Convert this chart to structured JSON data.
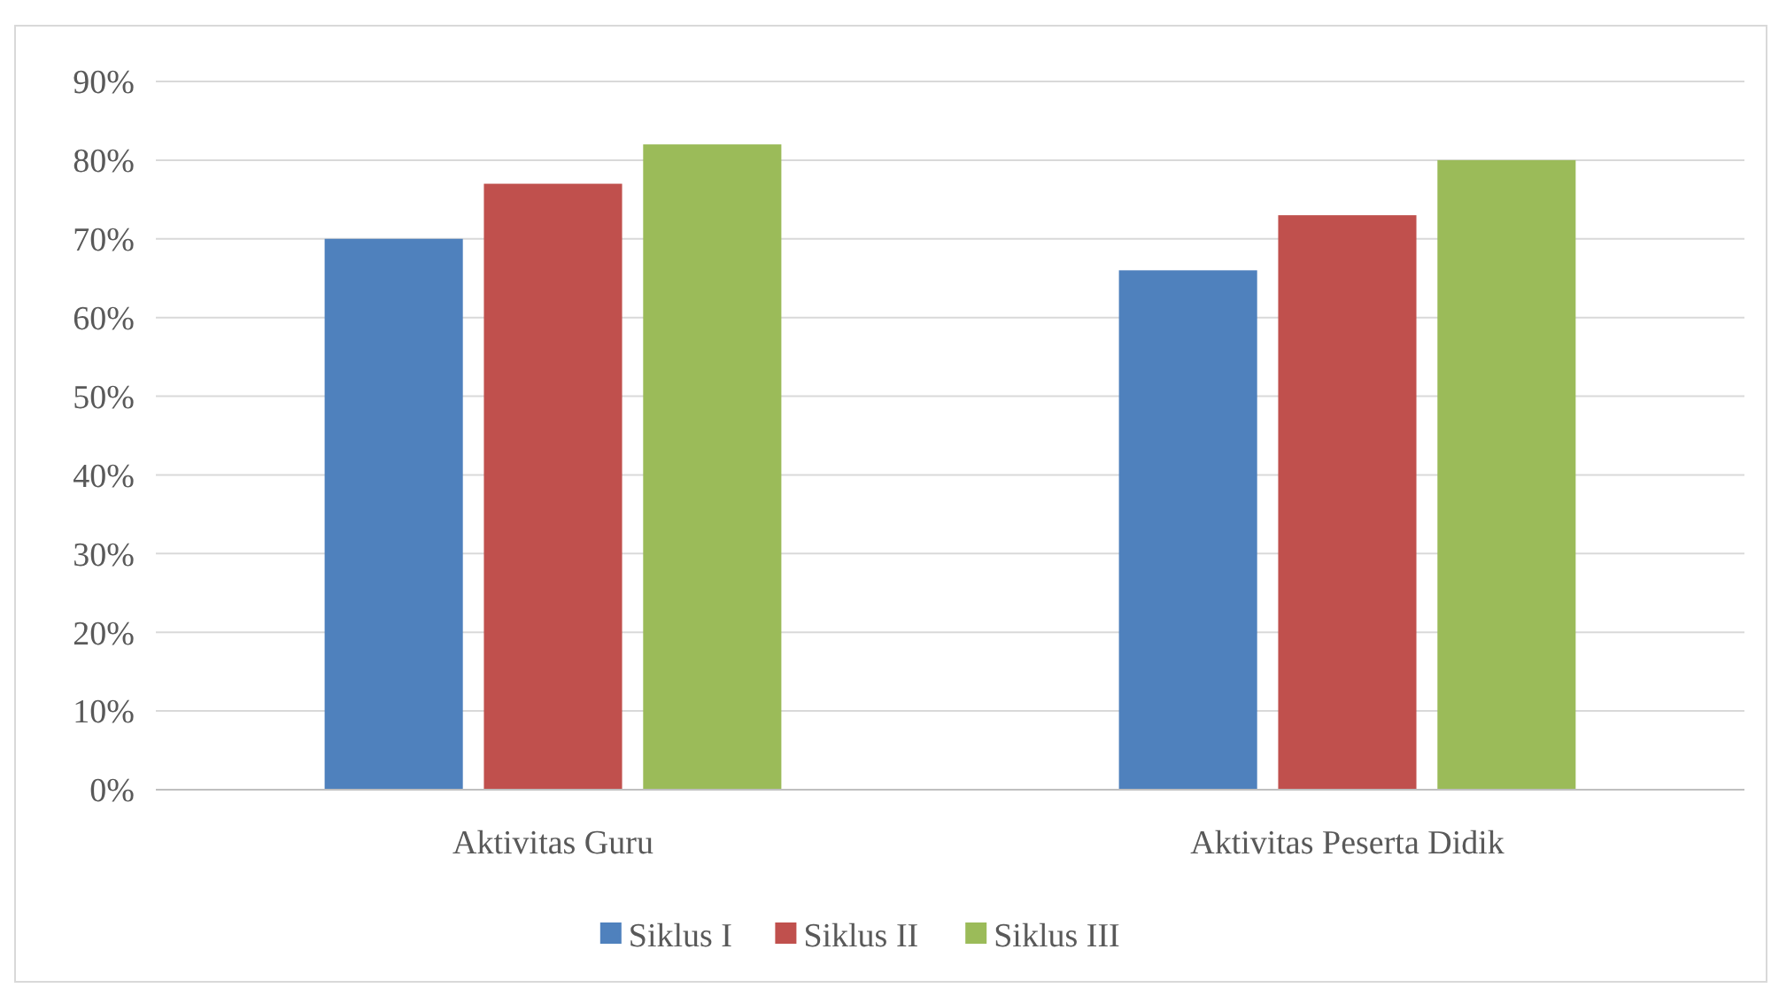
{
  "chart_data": {
    "type": "bar",
    "categories": [
      "Aktivitas Guru",
      "Aktivitas Peserta Didik"
    ],
    "series": [
      {
        "name": "Siklus I",
        "color": "#4f81bd",
        "values": [
          70,
          66
        ]
      },
      {
        "name": "Siklus II",
        "color": "#c0504d",
        "values": [
          77,
          73
        ]
      },
      {
        "name": "Siklus III",
        "color": "#9bbb59",
        "values": [
          82,
          80
        ]
      }
    ],
    "ylim": [
      0,
      90
    ],
    "yticks": [
      {
        "value": 0,
        "label": "0%"
      },
      {
        "value": 10,
        "label": "10%"
      },
      {
        "value": 20,
        "label": "20%"
      },
      {
        "value": 30,
        "label": "30%"
      },
      {
        "value": 40,
        "label": "40%"
      },
      {
        "value": 50,
        "label": "50%"
      },
      {
        "value": 60,
        "label": "60%"
      },
      {
        "value": 70,
        "label": "70%"
      },
      {
        "value": 80,
        "label": "80%"
      },
      {
        "value": 90,
        "label": "90%"
      }
    ],
    "grid": "y",
    "legend": "bottom"
  }
}
